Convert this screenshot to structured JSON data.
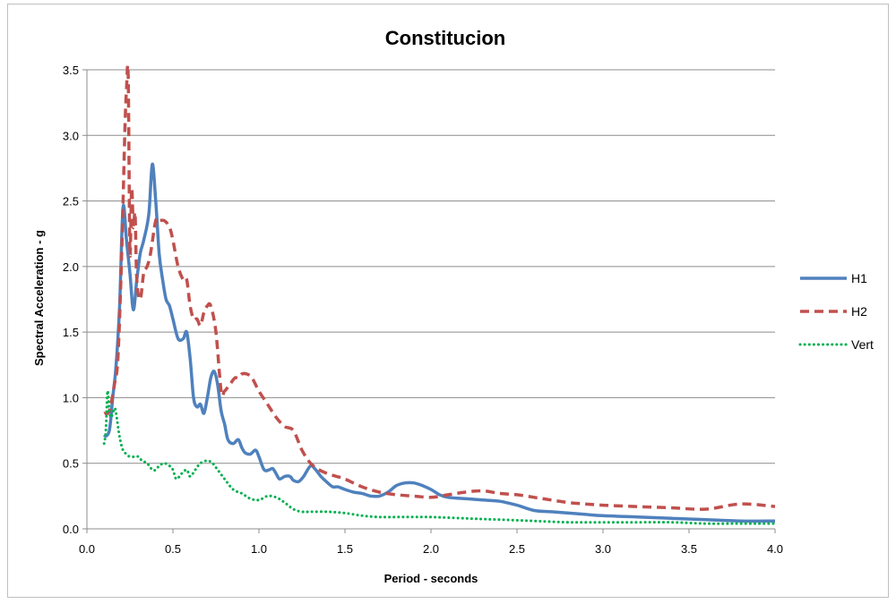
{
  "chart_data": {
    "type": "line",
    "title": "Constitucion",
    "xlabel": "Period - seconds",
    "ylabel": "Spectral Acceleration - g",
    "xlim": [
      0.0,
      4.0
    ],
    "ylim": [
      0.0,
      3.5
    ],
    "xticks": [
      "0.0",
      "0.5",
      "1.0",
      "1.5",
      "2.0",
      "2.5",
      "3.0",
      "3.5",
      "4.0"
    ],
    "yticks": [
      "0.0",
      "0.5",
      "1.0",
      "1.5",
      "2.0",
      "2.5",
      "3.0",
      "3.5"
    ],
    "grid": "horizontal",
    "legend_position": "right",
    "series": [
      {
        "name": "H1",
        "color": "#4F81BD",
        "style": "solid",
        "x": [
          0.1,
          0.13,
          0.15,
          0.17,
          0.19,
          0.21,
          0.23,
          0.25,
          0.27,
          0.29,
          0.31,
          0.33,
          0.36,
          0.38,
          0.4,
          0.42,
          0.44,
          0.46,
          0.48,
          0.5,
          0.53,
          0.56,
          0.58,
          0.6,
          0.62,
          0.64,
          0.66,
          0.68,
          0.7,
          0.72,
          0.74,
          0.76,
          0.78,
          0.8,
          0.82,
          0.85,
          0.88,
          0.9,
          0.92,
          0.95,
          0.98,
          1.0,
          1.03,
          1.06,
          1.08,
          1.1,
          1.12,
          1.15,
          1.18,
          1.2,
          1.23,
          1.26,
          1.3,
          1.33,
          1.36,
          1.4,
          1.43,
          1.46,
          1.5,
          1.55,
          1.6,
          1.65,
          1.7,
          1.75,
          1.8,
          1.85,
          1.9,
          1.95,
          2.0,
          2.05,
          2.1,
          2.2,
          2.3,
          2.4,
          2.5,
          2.6,
          2.7,
          2.8,
          2.9,
          3.0,
          3.2,
          3.4,
          3.6,
          3.8,
          4.0
        ],
        "y": [
          0.7,
          0.75,
          1.0,
          1.25,
          1.7,
          2.45,
          2.2,
          1.95,
          1.67,
          1.9,
          2.1,
          2.2,
          2.4,
          2.78,
          2.5,
          2.1,
          1.9,
          1.75,
          1.7,
          1.6,
          1.45,
          1.45,
          1.5,
          1.3,
          1.0,
          0.93,
          0.95,
          0.88,
          1.0,
          1.15,
          1.2,
          1.1,
          0.9,
          0.8,
          0.68,
          0.65,
          0.68,
          0.62,
          0.58,
          0.57,
          0.6,
          0.55,
          0.45,
          0.45,
          0.46,
          0.42,
          0.38,
          0.4,
          0.4,
          0.37,
          0.36,
          0.4,
          0.48,
          0.45,
          0.4,
          0.35,
          0.32,
          0.32,
          0.3,
          0.28,
          0.27,
          0.25,
          0.25,
          0.28,
          0.33,
          0.35,
          0.35,
          0.33,
          0.3,
          0.26,
          0.24,
          0.23,
          0.22,
          0.21,
          0.18,
          0.14,
          0.13,
          0.12,
          0.11,
          0.1,
          0.09,
          0.08,
          0.07,
          0.06,
          0.06
        ]
      },
      {
        "name": "H2",
        "color": "#C0504D",
        "style": "dashed",
        "x": [
          0.1,
          0.13,
          0.16,
          0.18,
          0.2,
          0.22,
          0.23,
          0.24,
          0.25,
          0.26,
          0.27,
          0.28,
          0.29,
          0.31,
          0.33,
          0.35,
          0.37,
          0.4,
          0.42,
          0.45,
          0.48,
          0.5,
          0.53,
          0.56,
          0.58,
          0.6,
          0.62,
          0.64,
          0.66,
          0.68,
          0.7,
          0.72,
          0.75,
          0.78,
          0.8,
          0.83,
          0.86,
          0.88,
          0.9,
          0.93,
          0.96,
          1.0,
          1.05,
          1.1,
          1.15,
          1.2,
          1.25,
          1.3,
          1.35,
          1.4,
          1.45,
          1.5,
          1.6,
          1.7,
          1.8,
          1.9,
          2.0,
          2.1,
          2.2,
          2.3,
          2.4,
          2.5,
          2.6,
          2.7,
          2.8,
          2.9,
          3.0,
          3.2,
          3.4,
          3.6,
          3.8,
          4.0
        ],
        "y": [
          0.88,
          0.9,
          1.1,
          1.3,
          2.0,
          3.0,
          3.35,
          3.45,
          2.1,
          2.6,
          2.3,
          2.4,
          1.9,
          1.75,
          1.95,
          2.0,
          2.1,
          2.35,
          2.35,
          2.35,
          2.3,
          2.2,
          2.0,
          1.9,
          1.9,
          1.7,
          1.6,
          1.6,
          1.55,
          1.65,
          1.7,
          1.7,
          1.5,
          1.05,
          1.05,
          1.1,
          1.15,
          1.15,
          1.18,
          1.18,
          1.15,
          1.05,
          0.95,
          0.85,
          0.78,
          0.75,
          0.6,
          0.5,
          0.45,
          0.42,
          0.4,
          0.38,
          0.32,
          0.28,
          0.26,
          0.25,
          0.24,
          0.26,
          0.28,
          0.29,
          0.27,
          0.26,
          0.24,
          0.22,
          0.2,
          0.19,
          0.18,
          0.17,
          0.16,
          0.15,
          0.19,
          0.17
        ]
      },
      {
        "name": "Vert",
        "color": "#00B050",
        "style": "dotted",
        "x": [
          0.1,
          0.11,
          0.12,
          0.13,
          0.14,
          0.15,
          0.16,
          0.17,
          0.19,
          0.21,
          0.23,
          0.25,
          0.28,
          0.3,
          0.32,
          0.35,
          0.38,
          0.4,
          0.42,
          0.45,
          0.48,
          0.5,
          0.52,
          0.55,
          0.58,
          0.6,
          0.63,
          0.66,
          0.7,
          0.73,
          0.76,
          0.8,
          0.85,
          0.9,
          0.95,
          1.0,
          1.05,
          1.1,
          1.15,
          1.2,
          1.25,
          1.3,
          1.4,
          1.5,
          1.6,
          1.7,
          1.8,
          1.9,
          2.0,
          2.2,
          2.4,
          2.6,
          2.8,
          3.0,
          3.2,
          3.4,
          3.6,
          3.8,
          4.0
        ],
        "y": [
          0.65,
          0.75,
          1.05,
          0.9,
          0.85,
          0.88,
          0.92,
          0.88,
          0.7,
          0.6,
          0.57,
          0.55,
          0.55,
          0.55,
          0.52,
          0.5,
          0.45,
          0.45,
          0.48,
          0.5,
          0.48,
          0.45,
          0.38,
          0.42,
          0.45,
          0.4,
          0.45,
          0.5,
          0.52,
          0.5,
          0.45,
          0.38,
          0.3,
          0.27,
          0.23,
          0.22,
          0.25,
          0.24,
          0.2,
          0.15,
          0.13,
          0.13,
          0.13,
          0.12,
          0.1,
          0.09,
          0.09,
          0.09,
          0.09,
          0.08,
          0.07,
          0.06,
          0.05,
          0.05,
          0.05,
          0.05,
          0.04,
          0.04,
          0.04
        ]
      }
    ]
  }
}
